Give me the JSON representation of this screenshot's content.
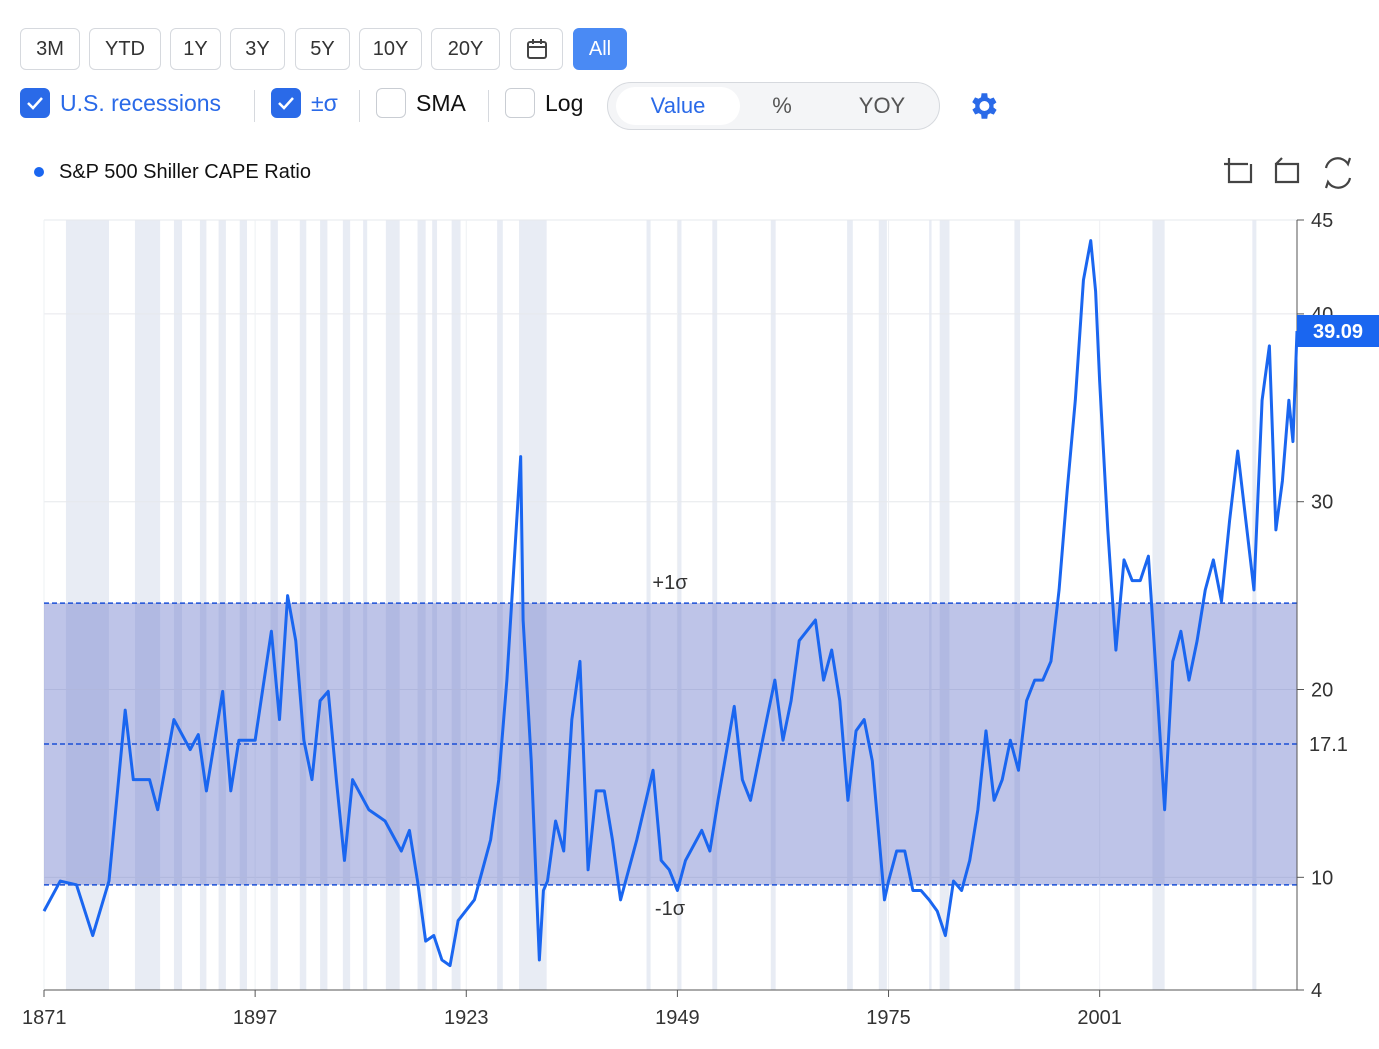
{
  "toolbar": {
    "ranges": [
      "3M",
      "YTD",
      "1Y",
      "3Y",
      "5Y",
      "10Y",
      "20Y",
      "All"
    ],
    "toggles": [
      {
        "label": "U.S. recessions",
        "checked": true
      },
      {
        "label": "±σ",
        "checked": true
      },
      {
        "label": "SMA",
        "checked": false
      },
      {
        "label": "Log",
        "checked": false
      }
    ],
    "modes": [
      "Value",
      "%",
      "YOY"
    ]
  },
  "chart_data": {
    "type": "line",
    "series": [
      {
        "name": "S&P 500 Shiller CAPE Ratio",
        "color": "#1a66f0",
        "x": [
          1871,
          1873,
          1875,
          1877,
          1879,
          1881,
          1882,
          1884,
          1885,
          1887,
          1889,
          1890,
          1891,
          1893,
          1894,
          1895,
          1897,
          1899,
          1900,
          1901,
          1902,
          1903,
          1904,
          1905,
          1906,
          1907,
          1908,
          1909,
          1911,
          1913,
          1915,
          1916,
          1917,
          1918,
          1919,
          1920,
          1921,
          1922,
          1924,
          1925,
          1926,
          1927,
          1928,
          1929.7,
          1930,
          1931,
          1932,
          1932.5,
          1933,
          1934,
          1935,
          1936,
          1937,
          1938,
          1939,
          1940,
          1941,
          1942,
          1944,
          1946,
          1947,
          1948,
          1949,
          1950,
          1952,
          1953,
          1954,
          1956,
          1957,
          1958,
          1960,
          1961,
          1962,
          1963,
          1964,
          1966,
          1967,
          1968,
          1969,
          1970,
          1971,
          1972,
          1973,
          1974.5,
          1975,
          1976,
          1977,
          1978,
          1979,
          1980,
          1981,
          1982,
          1983,
          1984,
          1985,
          1986,
          1987,
          1988,
          1989,
          1990,
          1991,
          1992,
          1993,
          1994,
          1995,
          1996,
          1997,
          1998,
          1999,
          1999.9,
          2000.5,
          2001,
          2002,
          2003,
          2004,
          2005,
          2006,
          2007,
          2008,
          2009,
          2010,
          2011,
          2012,
          2013,
          2014,
          2015,
          2016,
          2017,
          2018,
          2019,
          2020,
          2021,
          2021.9,
          2022.7,
          2023.5,
          2024.3,
          2024.8,
          2025.3
        ],
        "values": [
          8.2,
          9.8,
          9.6,
          6.9,
          9.8,
          18.9,
          15.2,
          15.2,
          13.6,
          18.4,
          16.8,
          17.6,
          14.6,
          19.9,
          14.6,
          17.3,
          17.3,
          23.1,
          18.4,
          25.0,
          22.6,
          17.3,
          15.2,
          19.4,
          19.9,
          15.2,
          10.9,
          15.2,
          13.6,
          13.0,
          11.4,
          12.5,
          9.8,
          6.6,
          6.9,
          5.6,
          5.3,
          7.7,
          8.8,
          10.4,
          12.0,
          15.2,
          20.5,
          32.4,
          23.7,
          16.2,
          5.6,
          9.3,
          9.8,
          13.0,
          11.4,
          18.4,
          21.5,
          10.4,
          14.6,
          14.6,
          12.0,
          8.8,
          12.0,
          15.7,
          10.9,
          10.4,
          9.3,
          10.9,
          12.5,
          11.4,
          14.1,
          19.1,
          15.2,
          14.1,
          18.4,
          20.5,
          17.3,
          19.4,
          22.6,
          23.7,
          20.5,
          22.1,
          19.4,
          14.1,
          17.8,
          18.4,
          16.2,
          8.8,
          9.8,
          11.4,
          11.4,
          9.3,
          9.3,
          8.8,
          8.2,
          6.9,
          9.8,
          9.3,
          10.9,
          13.6,
          17.8,
          14.1,
          15.2,
          17.3,
          15.7,
          19.4,
          20.5,
          20.5,
          21.5,
          25.3,
          30.6,
          35.4,
          41.8,
          43.9,
          41.2,
          36.4,
          28.5,
          22.1,
          26.9,
          25.8,
          25.8,
          27.1,
          20.5,
          13.6,
          21.5,
          23.1,
          20.5,
          22.6,
          25.3,
          26.9,
          24.7,
          29.0,
          32.7,
          29.0,
          25.3,
          35.4,
          38.3,
          28.5,
          31.1,
          35.4,
          33.2,
          39.09
        ]
      }
    ],
    "xlim": [
      1871,
      2025.3
    ],
    "xticks": [
      1871,
      1897,
      1923,
      1949,
      1975,
      2001
    ],
    "ylim": [
      4,
      45
    ],
    "yticks": [
      4,
      10,
      20,
      30,
      40,
      45
    ],
    "grid": true,
    "mean": {
      "value": 17.1
    },
    "sigma": {
      "upper": 24.6,
      "lower": 9.6,
      "upper_label": "+1σ",
      "lower_label": "-1σ"
    },
    "recessions": [
      [
        1873.7,
        1879
      ],
      [
        1882.2,
        1885.3
      ],
      [
        1887,
        1888
      ],
      [
        1890.2,
        1891
      ],
      [
        1892.5,
        1893.4
      ],
      [
        1895.1,
        1896
      ],
      [
        1898.9,
        1899.8
      ],
      [
        1902.5,
        1903.3
      ],
      [
        1905,
        1905.9
      ],
      [
        1907.8,
        1908.7
      ],
      [
        1910.3,
        1910.8
      ],
      [
        1913.1,
        1914.8
      ],
      [
        1917,
        1918
      ],
      [
        1918.8,
        1919.4
      ],
      [
        1921.2,
        1922.3
      ],
      [
        1926.8,
        1927.5
      ],
      [
        1929.5,
        1932.9
      ],
      [
        1945.2,
        1945.7
      ],
      [
        1949,
        1949.5
      ],
      [
        1953.3,
        1953.9
      ],
      [
        1960.5,
        1961.1
      ],
      [
        1969.9,
        1970.6
      ],
      [
        1973.8,
        1974.8
      ],
      [
        1980,
        1980.3
      ],
      [
        1981.3,
        1982.5
      ],
      [
        1990.5,
        1991.2
      ],
      [
        2007.5,
        2009
      ],
      [
        2019.8,
        2020.3
      ]
    ]
  }
}
